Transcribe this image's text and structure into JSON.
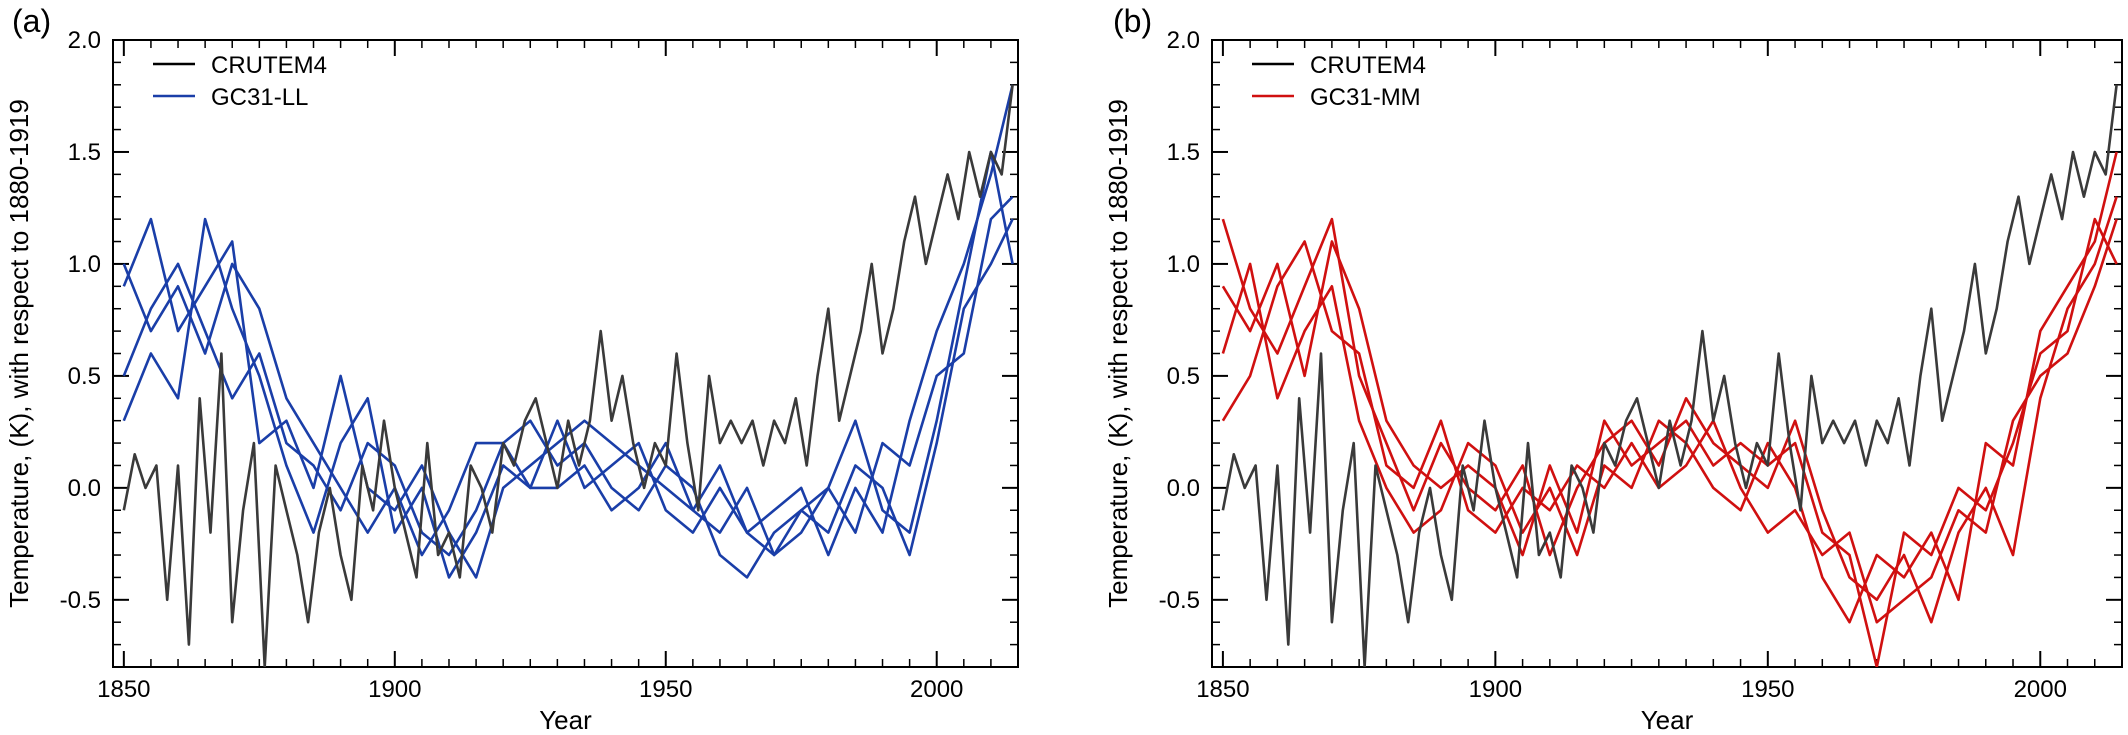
{
  "chart_data": [
    {
      "type": "line",
      "panel": "(a)",
      "title": "",
      "xlabel": "Year",
      "ylabel": "Temperature, (K), with respect to 1880-1919",
      "xlim": [
        1848,
        2015
      ],
      "ylim": [
        -0.8,
        2.0
      ],
      "xticks": [
        1850,
        1900,
        1950,
        2000
      ],
      "yticks": [
        -0.5,
        0.0,
        0.5,
        1.0,
        1.5,
        2.0
      ],
      "ytick_labels": [
        "-0.5",
        "0.0",
        "0.5",
        "1.0",
        "1.5",
        "2.0"
      ],
      "legend_position": "top-left",
      "grid": false,
      "series": [
        {
          "name": "CRUTEM4",
          "color": "#000000",
          "role": "observations",
          "x": [
            1850,
            1852,
            1854,
            1856,
            1858,
            1860,
            1862,
            1864,
            1866,
            1868,
            1870,
            1872,
            1874,
            1876,
            1878,
            1880,
            1882,
            1884,
            1886,
            1888,
            1890,
            1892,
            1894,
            1896,
            1898,
            1900,
            1902,
            1904,
            1906,
            1908,
            1910,
            1912,
            1914,
            1916,
            1918,
            1920,
            1922,
            1924,
            1926,
            1928,
            1930,
            1932,
            1934,
            1936,
            1938,
            1940,
            1942,
            1944,
            1946,
            1948,
            1950,
            1952,
            1954,
            1956,
            1958,
            1960,
            1962,
            1964,
            1966,
            1968,
            1970,
            1972,
            1974,
            1976,
            1978,
            1980,
            1982,
            1984,
            1986,
            1988,
            1990,
            1992,
            1994,
            1996,
            1998,
            2000,
            2002,
            2004,
            2006,
            2008,
            2010,
            2012,
            2014
          ],
          "values": [
            -0.1,
            0.15,
            0.0,
            0.1,
            -0.5,
            0.1,
            -0.7,
            0.4,
            -0.2,
            0.6,
            -0.6,
            -0.1,
            0.2,
            -0.8,
            0.1,
            -0.1,
            -0.3,
            -0.6,
            -0.2,
            0.0,
            -0.3,
            -0.5,
            0.1,
            -0.1,
            0.3,
            0.0,
            -0.2,
            -0.4,
            0.2,
            -0.3,
            -0.2,
            -0.4,
            0.1,
            0.0,
            -0.2,
            0.2,
            0.1,
            0.3,
            0.4,
            0.2,
            0.0,
            0.3,
            0.1,
            0.3,
            0.7,
            0.3,
            0.5,
            0.2,
            0.0,
            0.2,
            0.1,
            0.6,
            0.2,
            -0.1,
            0.5,
            0.2,
            0.3,
            0.2,
            0.3,
            0.1,
            0.3,
            0.2,
            0.4,
            0.1,
            0.5,
            0.8,
            0.3,
            0.5,
            0.7,
            1.0,
            0.6,
            0.8,
            1.1,
            1.3,
            1.0,
            1.2,
            1.4,
            1.2,
            1.5,
            1.3,
            1.5,
            1.4,
            1.8
          ]
        },
        {
          "name": "GC31-LL",
          "color": "#1a3ea8",
          "role": "ensemble (4 members)",
          "x": [
            1850,
            1855,
            1860,
            1865,
            1870,
            1875,
            1880,
            1885,
            1890,
            1895,
            1900,
            1905,
            1910,
            1915,
            1920,
            1925,
            1930,
            1935,
            1940,
            1945,
            1950,
            1955,
            1960,
            1965,
            1970,
            1975,
            1980,
            1985,
            1990,
            1995,
            2000,
            2005,
            2010,
            2014
          ],
          "members": [
            [
              0.9,
              1.2,
              0.7,
              0.9,
              1.1,
              0.2,
              0.3,
              0.0,
              0.5,
              0.0,
              -0.1,
              0.1,
              -0.2,
              -0.4,
              0.0,
              0.1,
              0.2,
              0.3,
              0.2,
              0.1,
              0.0,
              -0.1,
              0.1,
              -0.2,
              -0.1,
              0.0,
              -0.3,
              0.0,
              -0.2,
              0.3,
              0.7,
              1.0,
              1.4,
              1.8
            ],
            [
              0.5,
              0.8,
              1.0,
              0.7,
              0.4,
              0.6,
              0.2,
              0.1,
              -0.1,
              0.2,
              0.1,
              -0.2,
              -0.3,
              -0.1,
              0.2,
              0.3,
              0.1,
              0.2,
              0.0,
              -0.1,
              0.1,
              0.0,
              -0.3,
              -0.4,
              -0.2,
              -0.1,
              -0.2,
              0.1,
              0.0,
              -0.3,
              0.2,
              0.8,
              1.0,
              1.2
            ],
            [
              0.3,
              0.6,
              0.4,
              1.2,
              0.8,
              0.5,
              0.1,
              -0.2,
              0.2,
              0.4,
              -0.2,
              0.0,
              -0.4,
              -0.2,
              0.1,
              0.0,
              0.3,
              0.0,
              0.1,
              0.2,
              -0.1,
              -0.2,
              0.0,
              -0.2,
              -0.3,
              -0.1,
              0.0,
              -0.2,
              0.2,
              0.1,
              0.5,
              0.6,
              1.2,
              1.3
            ],
            [
              1.0,
              0.7,
              0.9,
              0.6,
              1.0,
              0.8,
              0.4,
              0.2,
              0.0,
              -0.2,
              0.0,
              -0.3,
              -0.1,
              0.2,
              0.2,
              0.0,
              0.0,
              0.1,
              -0.1,
              0.0,
              0.2,
              -0.1,
              -0.2,
              0.0,
              -0.3,
              -0.2,
              0.0,
              0.3,
              -0.1,
              -0.2,
              0.3,
              0.9,
              1.5,
              1.0
            ]
          ]
        }
      ]
    },
    {
      "type": "line",
      "panel": "(b)",
      "title": "",
      "xlabel": "Year",
      "ylabel": "Temperature, (K), with respect to 1880-1919",
      "xlim": [
        1848,
        2015
      ],
      "ylim": [
        -0.8,
        2.0
      ],
      "xticks": [
        1850,
        1900,
        1950,
        2000
      ],
      "yticks": [
        -0.5,
        0.0,
        0.5,
        1.0,
        1.5,
        2.0
      ],
      "ytick_labels": [
        "-0.5",
        "0.0",
        "0.5",
        "1.0",
        "1.5",
        "2.0"
      ],
      "legend_position": "top-left",
      "grid": false,
      "series": [
        {
          "name": "CRUTEM4",
          "color": "#000000",
          "role": "observations",
          "x": [
            1850,
            1852,
            1854,
            1856,
            1858,
            1860,
            1862,
            1864,
            1866,
            1868,
            1870,
            1872,
            1874,
            1876,
            1878,
            1880,
            1882,
            1884,
            1886,
            1888,
            1890,
            1892,
            1894,
            1896,
            1898,
            1900,
            1902,
            1904,
            1906,
            1908,
            1910,
            1912,
            1914,
            1916,
            1918,
            1920,
            1922,
            1924,
            1926,
            1928,
            1930,
            1932,
            1934,
            1936,
            1938,
            1940,
            1942,
            1944,
            1946,
            1948,
            1950,
            1952,
            1954,
            1956,
            1958,
            1960,
            1962,
            1964,
            1966,
            1968,
            1970,
            1972,
            1974,
            1976,
            1978,
            1980,
            1982,
            1984,
            1986,
            1988,
            1990,
            1992,
            1994,
            1996,
            1998,
            2000,
            2002,
            2004,
            2006,
            2008,
            2010,
            2012,
            2014
          ],
          "values": [
            -0.1,
            0.15,
            0.0,
            0.1,
            -0.5,
            0.1,
            -0.7,
            0.4,
            -0.2,
            0.6,
            -0.6,
            -0.1,
            0.2,
            -0.8,
            0.1,
            -0.1,
            -0.3,
            -0.6,
            -0.2,
            0.0,
            -0.3,
            -0.5,
            0.1,
            -0.1,
            0.3,
            0.0,
            -0.2,
            -0.4,
            0.2,
            -0.3,
            -0.2,
            -0.4,
            0.1,
            0.0,
            -0.2,
            0.2,
            0.1,
            0.3,
            0.4,
            0.2,
            0.0,
            0.3,
            0.1,
            0.3,
            0.7,
            0.3,
            0.5,
            0.2,
            0.0,
            0.2,
            0.1,
            0.6,
            0.2,
            -0.1,
            0.5,
            0.2,
            0.3,
            0.2,
            0.3,
            0.1,
            0.3,
            0.2,
            0.4,
            0.1,
            0.5,
            0.8,
            0.3,
            0.5,
            0.7,
            1.0,
            0.6,
            0.8,
            1.1,
            1.3,
            1.0,
            1.2,
            1.4,
            1.2,
            1.5,
            1.3,
            1.5,
            1.4,
            1.8
          ]
        },
        {
          "name": "GC31-MM",
          "color": "#d01010",
          "role": "ensemble (4 members)",
          "x": [
            1850,
            1855,
            1860,
            1865,
            1870,
            1875,
            1880,
            1885,
            1890,
            1895,
            1900,
            1905,
            1910,
            1915,
            1920,
            1925,
            1930,
            1935,
            1940,
            1945,
            1950,
            1955,
            1960,
            1965,
            1970,
            1975,
            1980,
            1985,
            1990,
            1995,
            2000,
            2005,
            2010,
            2014
          ],
          "members": [
            [
              1.2,
              0.8,
              0.6,
              0.9,
              1.2,
              0.5,
              0.2,
              -0.1,
              0.2,
              0.0,
              -0.1,
              0.1,
              -0.3,
              0.0,
              0.2,
              0.3,
              0.1,
              0.4,
              0.2,
              0.1,
              0.0,
              0.3,
              -0.1,
              -0.4,
              -0.5,
              -0.3,
              -0.6,
              -0.2,
              0.0,
              -0.3,
              0.4,
              0.8,
              1.0,
              1.3
            ],
            [
              0.6,
              1.0,
              0.4,
              0.7,
              0.9,
              0.3,
              0.0,
              -0.2,
              -0.1,
              0.2,
              0.1,
              -0.2,
              0.0,
              -0.3,
              0.1,
              0.0,
              0.3,
              0.2,
              0.0,
              -0.1,
              0.2,
              0.0,
              -0.4,
              -0.6,
              -0.3,
              -0.4,
              -0.2,
              -0.5,
              0.2,
              0.1,
              0.7,
              0.9,
              1.1,
              1.5
            ],
            [
              0.3,
              0.5,
              0.9,
              1.1,
              0.7,
              0.6,
              0.1,
              0.0,
              0.3,
              -0.1,
              -0.2,
              0.0,
              -0.1,
              0.1,
              0.0,
              0.2,
              0.0,
              0.1,
              0.3,
              0.0,
              -0.2,
              -0.1,
              -0.3,
              -0.2,
              -0.6,
              -0.5,
              -0.4,
              -0.1,
              -0.2,
              0.3,
              0.5,
              0.6,
              0.9,
              1.2
            ],
            [
              0.9,
              0.7,
              1.0,
              0.5,
              1.1,
              0.8,
              0.3,
              0.1,
              0.0,
              0.1,
              0.0,
              -0.3,
              0.1,
              -0.2,
              0.3,
              0.1,
              0.2,
              0.3,
              0.1,
              0.2,
              0.1,
              0.2,
              -0.2,
              -0.3,
              -0.8,
              -0.2,
              -0.3,
              0.0,
              -0.1,
              0.2,
              0.6,
              0.7,
              1.2,
              1.0
            ]
          ]
        }
      ]
    }
  ]
}
